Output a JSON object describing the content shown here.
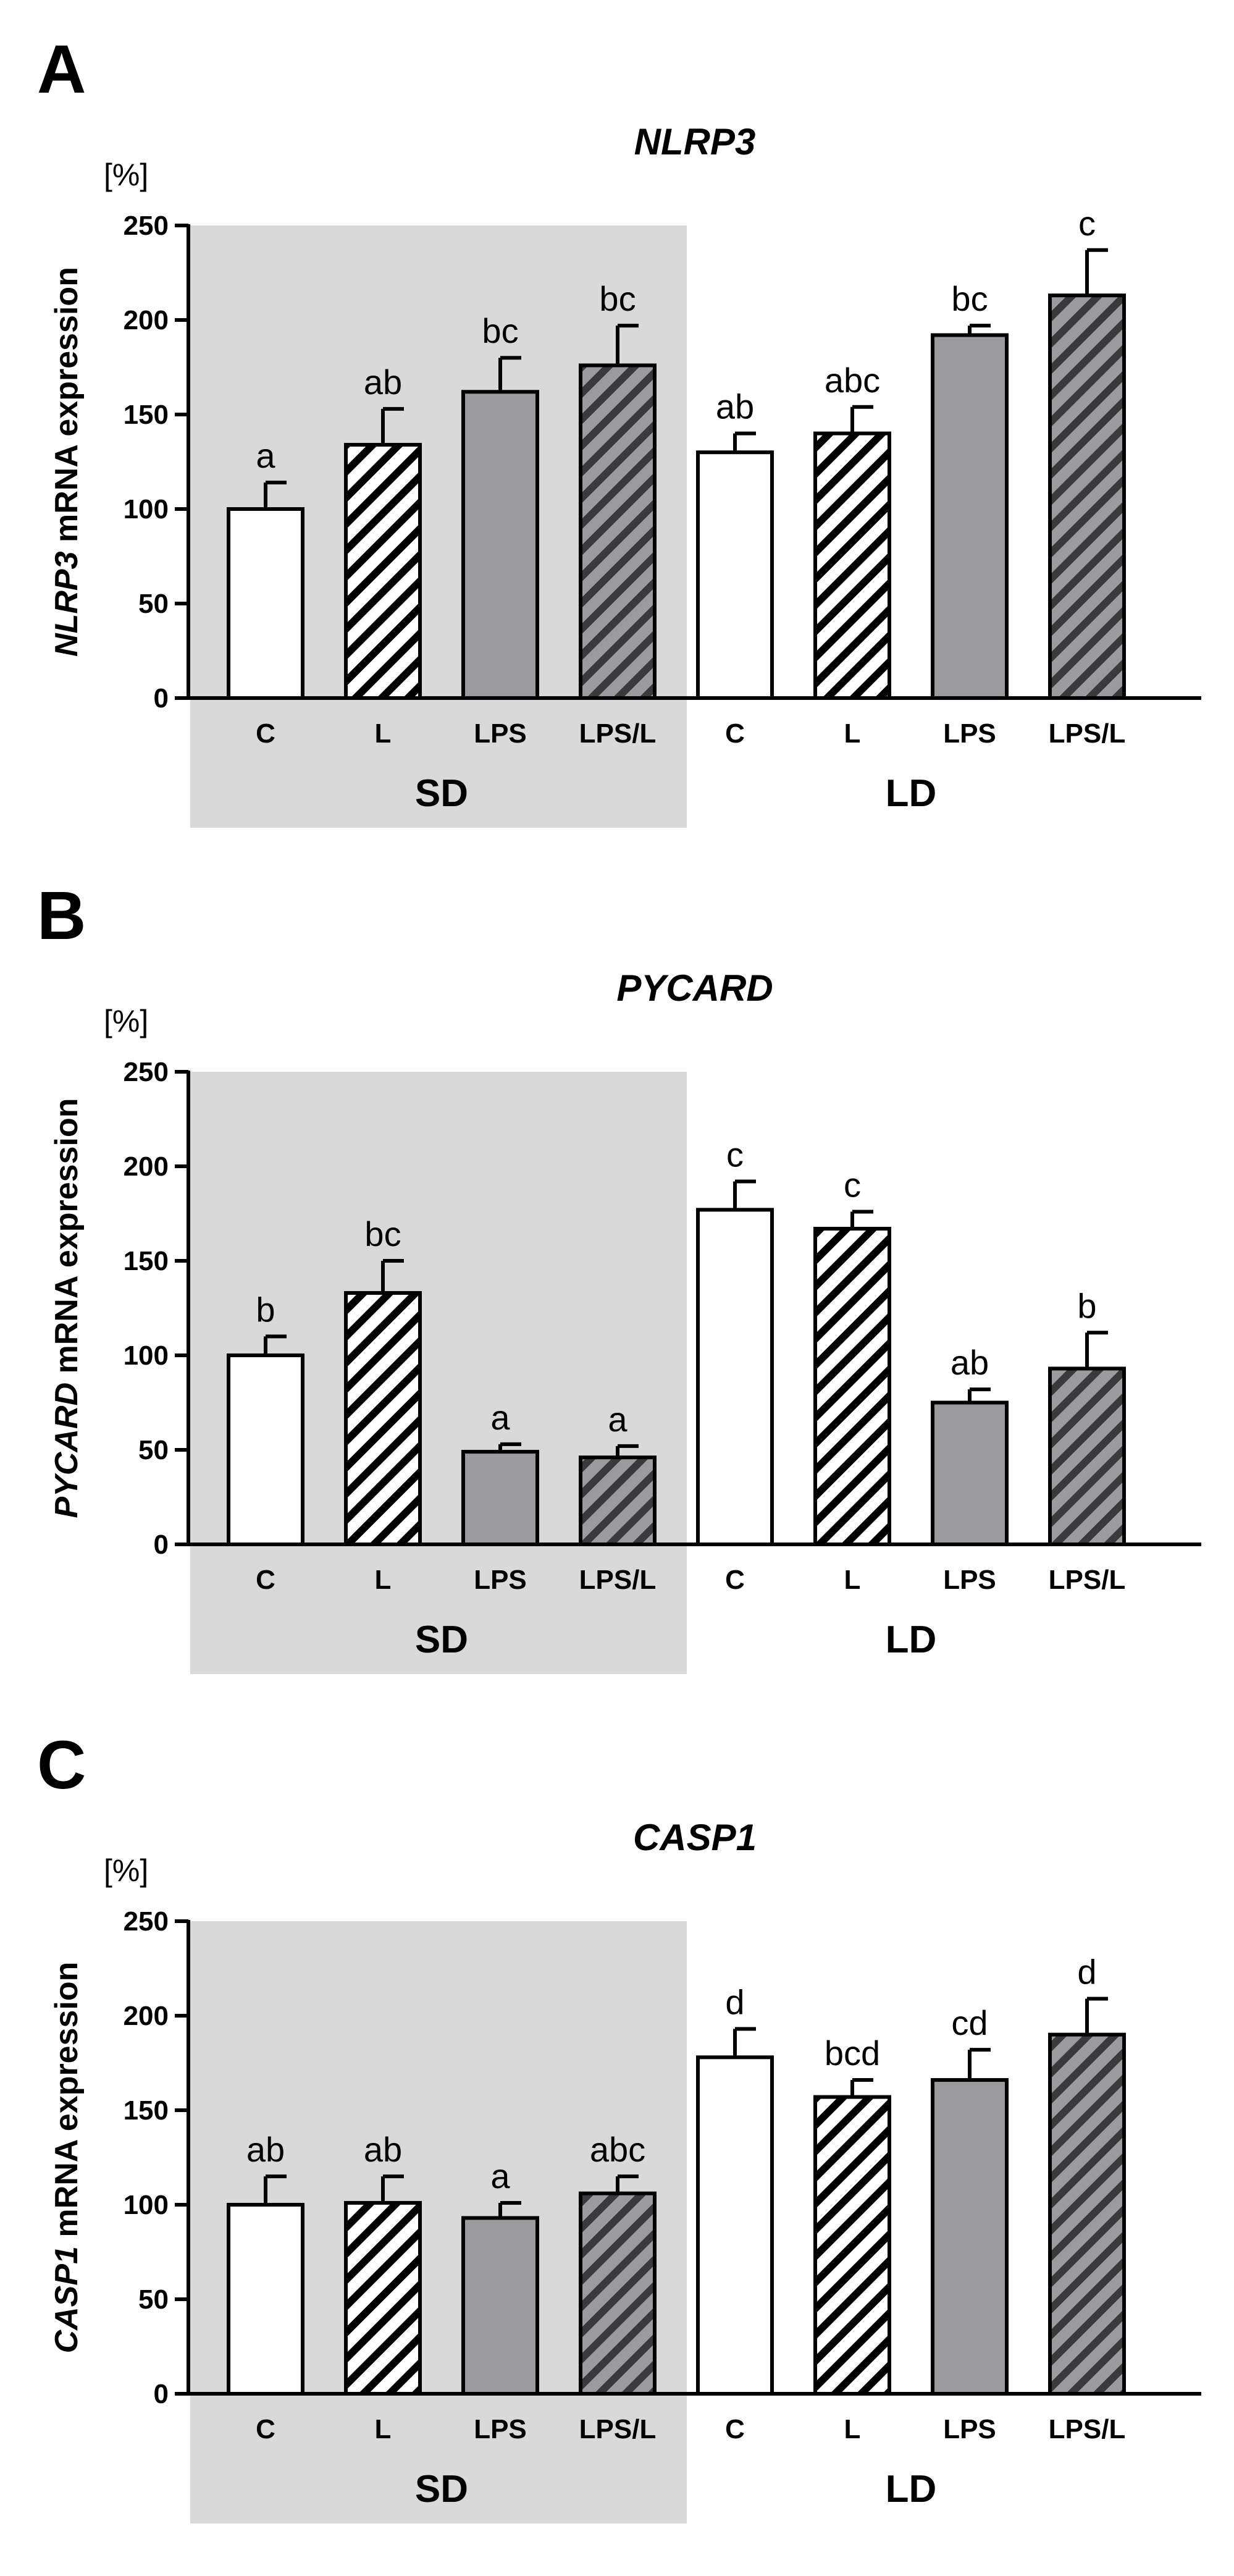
{
  "chart_data": [
    {
      "type": "bar",
      "panel_label": "A",
      "title": "NLRP3",
      "unit": "[%]",
      "ylabel_gene": "NLRP3",
      "ylabel_rest": " mRNA expression",
      "ylim": [
        0,
        250
      ],
      "yticks": [
        "0",
        "50",
        "100",
        "150",
        "200",
        "250"
      ],
      "groups": [
        {
          "label": "SD",
          "shaded": true,
          "categories": [
            "C",
            "L",
            "LPS",
            "LPS/L"
          ]
        },
        {
          "label": "LD",
          "shaded": false,
          "categories": [
            "C",
            "L",
            "LPS",
            "LPS/L"
          ]
        }
      ],
      "categories": [
        "C",
        "L",
        "LPS",
        "LPS/L",
        "C",
        "L",
        "LPS",
        "LPS/L"
      ],
      "values": [
        100,
        134,
        162,
        176,
        130,
        140,
        192,
        213
      ],
      "errors": [
        14,
        19,
        18,
        21,
        10,
        14,
        5,
        24
      ],
      "significance": [
        "a",
        "ab",
        "bc",
        "bc",
        "ab",
        "abc",
        "bc",
        "c"
      ]
    },
    {
      "type": "bar",
      "panel_label": "B",
      "title": "PYCARD",
      "unit": "[%]",
      "ylabel_gene": "PYCARD",
      "ylabel_rest": " mRNA expression",
      "ylim": [
        0,
        250
      ],
      "yticks": [
        "0",
        "50",
        "100",
        "150",
        "200",
        "250"
      ],
      "groups": [
        {
          "label": "SD",
          "shaded": true,
          "categories": [
            "C",
            "L",
            "LPS",
            "LPS/L"
          ]
        },
        {
          "label": "LD",
          "shaded": false,
          "categories": [
            "C",
            "L",
            "LPS",
            "LPS/L"
          ]
        }
      ],
      "categories": [
        "C",
        "L",
        "LPS",
        "LPS/L",
        "C",
        "L",
        "LPS",
        "LPS/L"
      ],
      "values": [
        100,
        133,
        49,
        46,
        177,
        167,
        75,
        93
      ],
      "errors": [
        10,
        17,
        4,
        6,
        15,
        9,
        7,
        19
      ],
      "significance": [
        "b",
        "bc",
        "a",
        "a",
        "c",
        "c",
        "ab",
        "b"
      ]
    },
    {
      "type": "bar",
      "panel_label": "C",
      "title": "CASP1",
      "unit": "[%]",
      "ylabel_gene": "CASP1",
      "ylabel_rest": " mRNA expression",
      "ylim": [
        0,
        250
      ],
      "yticks": [
        "0",
        "50",
        "100",
        "150",
        "200",
        "250"
      ],
      "groups": [
        {
          "label": "SD",
          "shaded": true,
          "categories": [
            "C",
            "L",
            "LPS",
            "LPS/L"
          ]
        },
        {
          "label": "LD",
          "shaded": false,
          "categories": [
            "C",
            "L",
            "LPS",
            "LPS/L"
          ]
        }
      ],
      "categories": [
        "C",
        "L",
        "LPS",
        "LPS/L",
        "C",
        "L",
        "LPS",
        "LPS/L"
      ],
      "values": [
        100,
        101,
        93,
        106,
        178,
        157,
        166,
        190
      ],
      "errors": [
        15,
        14,
        8,
        9,
        15,
        9,
        16,
        19
      ],
      "significance": [
        "ab",
        "ab",
        "a",
        "abc",
        "d",
        "bcd",
        "cd",
        "d"
      ]
    }
  ],
  "bar_styles": [
    "white",
    "white-hatched",
    "gray",
    "gray-hatched",
    "white",
    "white-hatched",
    "gray",
    "gray-hatched"
  ],
  "colors": {
    "gray_fill": "#9b9b9f",
    "shade": "#d9d9d9",
    "ink": "#000000",
    "white": "#ffffff"
  }
}
